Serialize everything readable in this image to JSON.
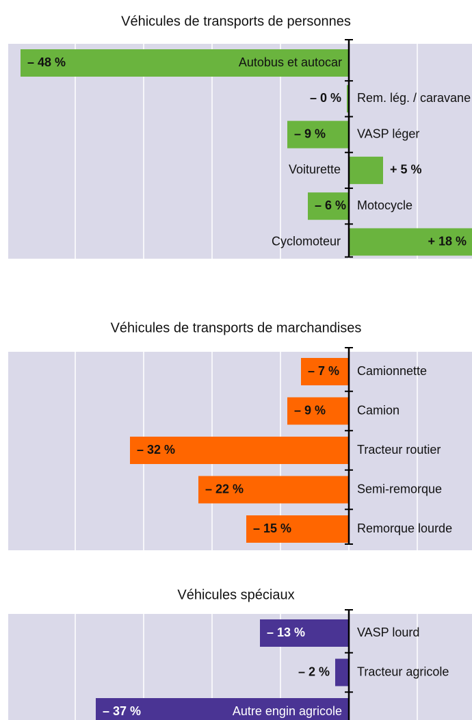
{
  "chart_data": [
    {
      "type": "bar",
      "title": "Véhicules de transports de personnes",
      "categories": [
        "Autobus et autocar",
        "Rem. lég. / caravane",
        "VASP léger",
        "Voiturette",
        "Motocycle",
        "Cyclomoteur"
      ],
      "values": [
        -48,
        -0.3,
        -9,
        5,
        -6,
        18
      ],
      "value_labels": [
        "– 48 %",
        "– 0 %",
        "– 9 %",
        "+ 5 %",
        "– 6 %",
        "+ 18 %"
      ],
      "color": "#6ab43e",
      "xlim": [
        -50,
        18
      ],
      "xticks": [
        -40,
        -30,
        -20,
        -10,
        0,
        10
      ],
      "grid": true
    },
    {
      "type": "bar",
      "title": "Véhicules de transports de marchandises",
      "categories": [
        "Camionnette",
        "Camion",
        "Tracteur routier",
        "Semi-remorque",
        "Remorque lourde"
      ],
      "values": [
        -7,
        -9,
        -32,
        -22,
        -15
      ],
      "value_labels": [
        "– 7 %",
        "– 9 %",
        "– 32 %",
        "– 22 %",
        "– 15 %"
      ],
      "color": "#ff6600",
      "xlim": [
        -50,
        18
      ],
      "xticks": [
        -40,
        -30,
        -20,
        -10,
        0,
        10
      ],
      "grid": true
    },
    {
      "type": "bar",
      "title": "Véhicules spéciaux",
      "categories": [
        "VASP lourd",
        "Tracteur agricole",
        "Autre engin agricole"
      ],
      "values": [
        -13,
        -2,
        -37
      ],
      "value_labels": [
        "– 13 %",
        "– 2 %",
        "– 37 %"
      ],
      "color": "#4a3494",
      "xlim": [
        -50,
        18
      ],
      "xticks": [
        -40,
        -30,
        -20,
        -10,
        0,
        10
      ],
      "grid": true
    }
  ]
}
